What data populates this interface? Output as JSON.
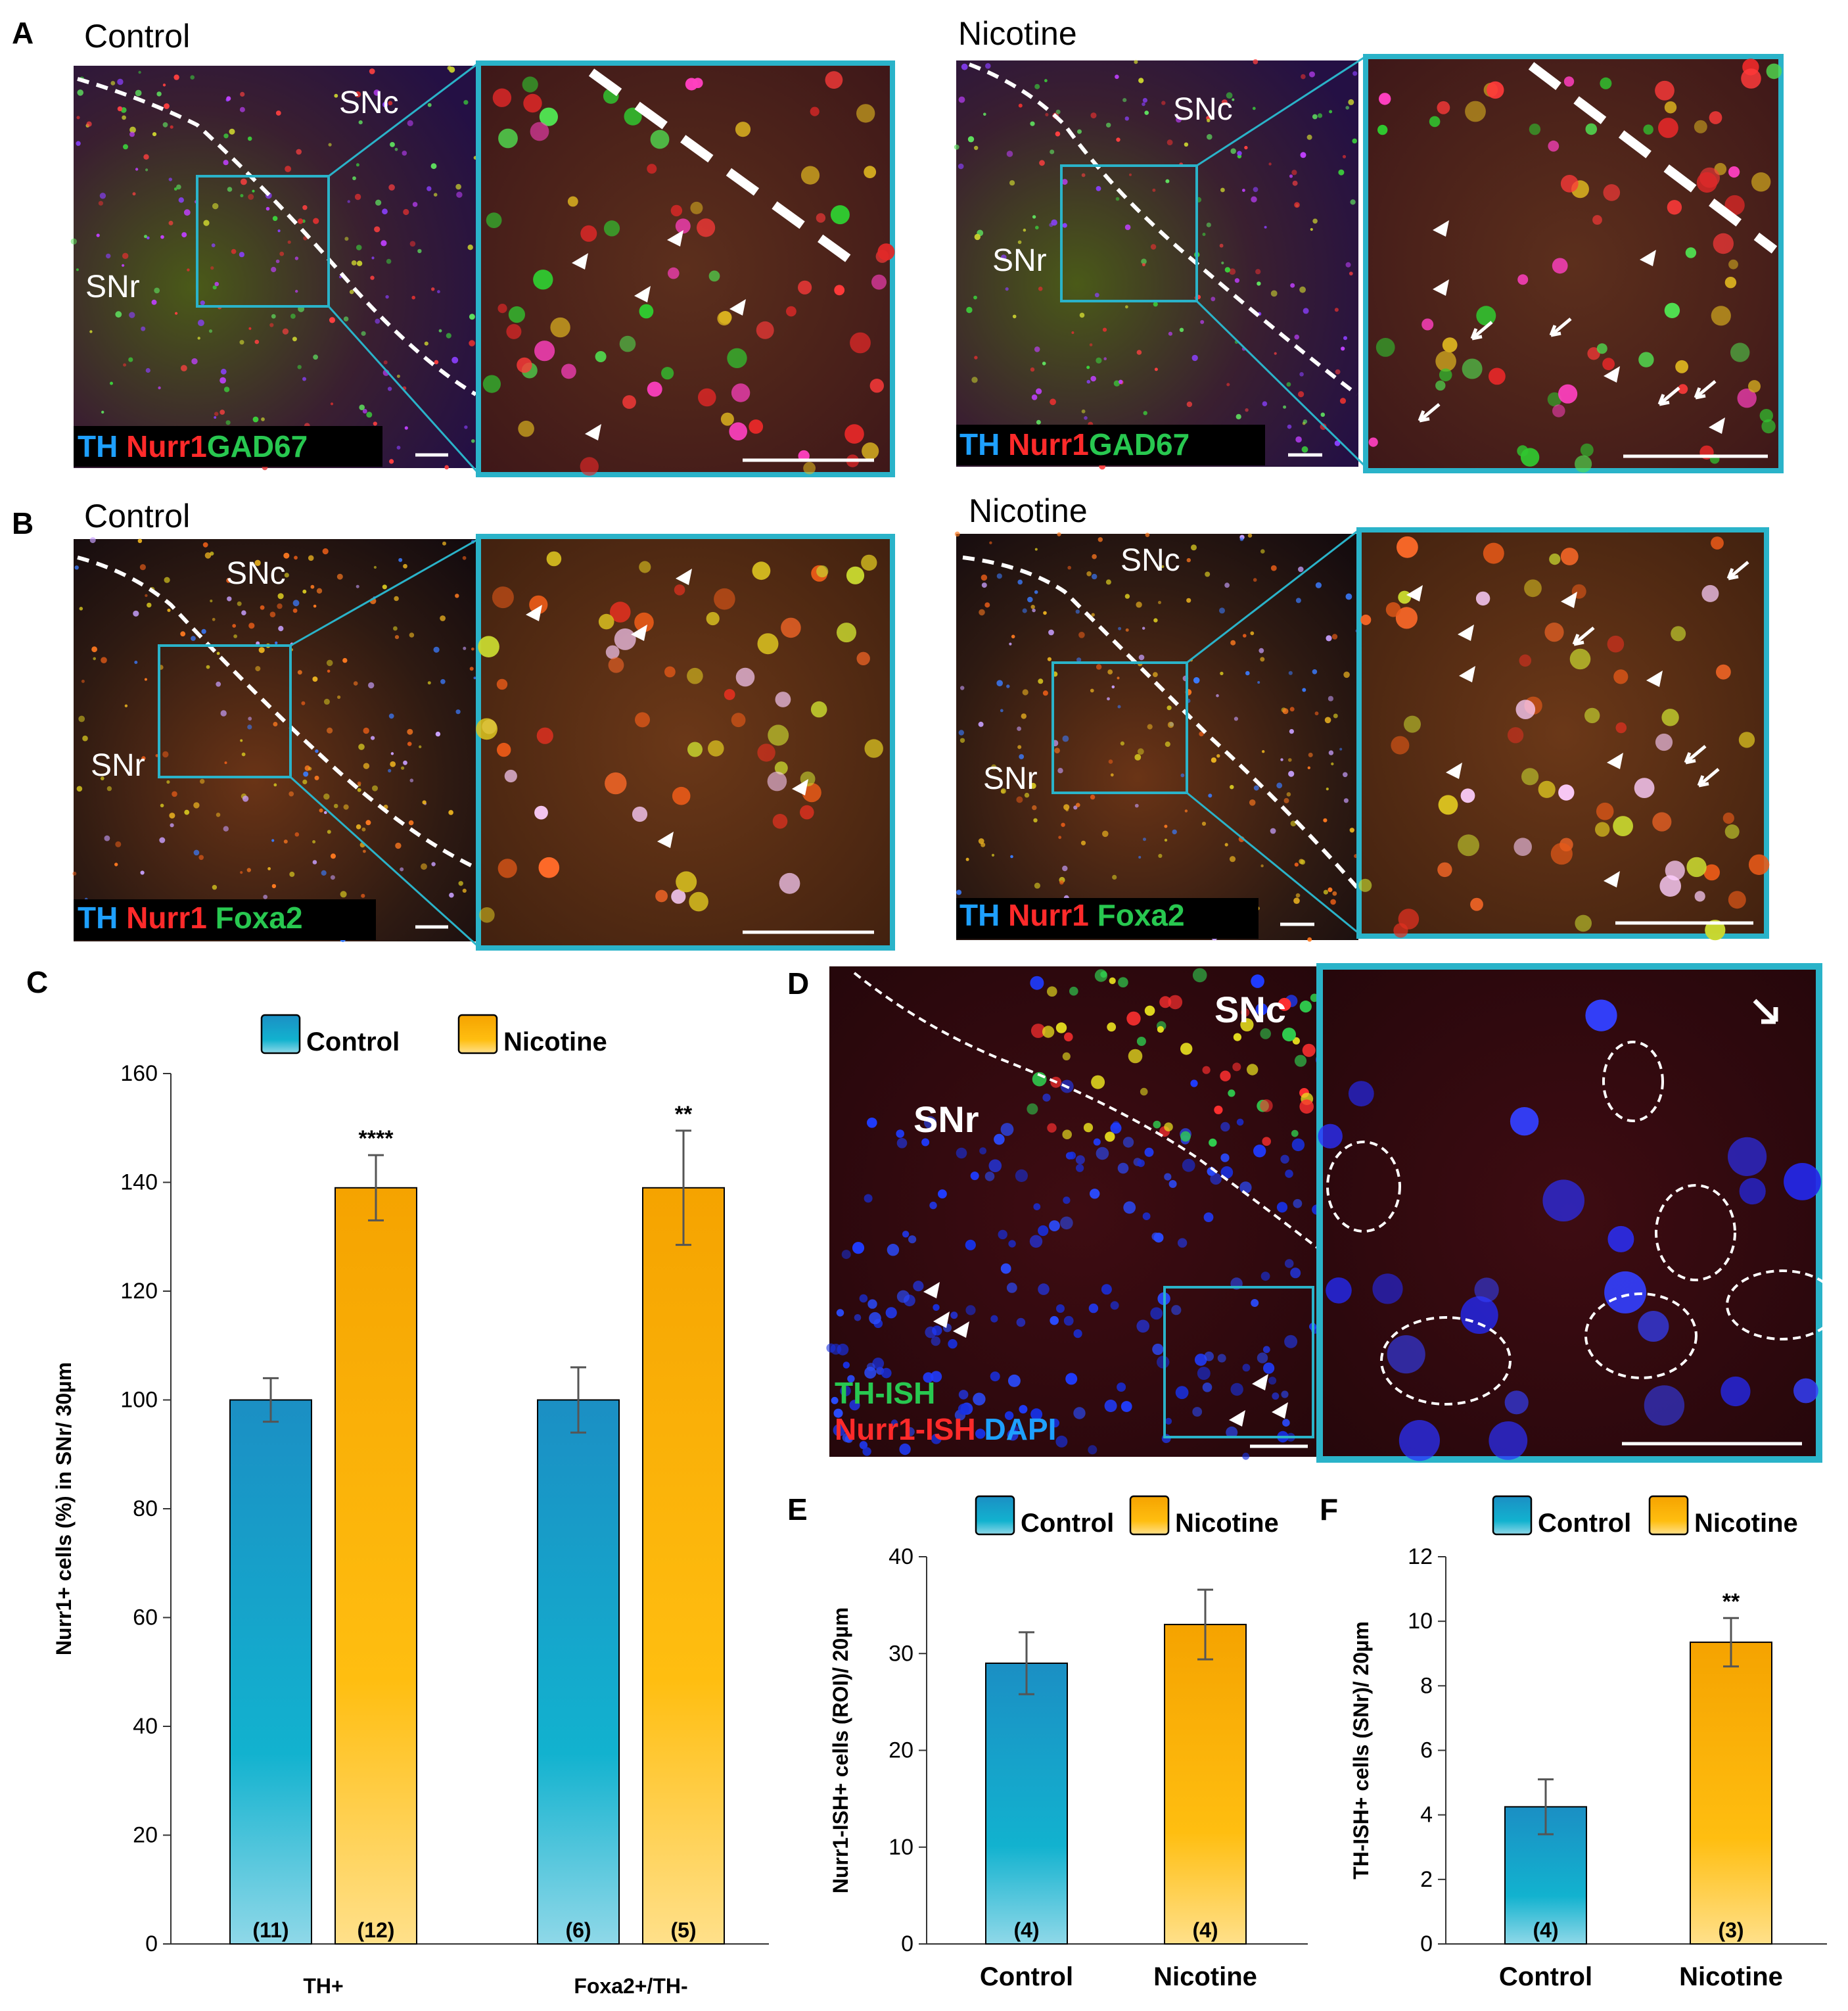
{
  "panel_labels": {
    "a": "A",
    "b": "B",
    "c": "C",
    "d": "D",
    "e": "E",
    "f": "F"
  },
  "micrographs": {
    "a_control": {
      "title": "Control",
      "region_c": "SNc",
      "region_r": "SNr",
      "stain_1": "TH",
      "stain_2": "Nurr1",
      "stain_3": "GAD67"
    },
    "a_nicotine": {
      "title": "Nicotine",
      "region_c": "SNc",
      "region_r": "SNr",
      "stain_1": "TH",
      "stain_2": "Nurr1",
      "stain_3": "GAD67"
    },
    "b_control": {
      "title": "Control",
      "region_c": "SNc",
      "region_r": "SNr",
      "stain_1": "TH",
      "stain_2": "Nurr1",
      "stain_3": "Foxa2"
    },
    "b_nicotine": {
      "title": "Nicotine",
      "region_c": "SNc",
      "region_r": "SNr",
      "stain_1": "TH",
      "stain_2": "Nurr1",
      "stain_3": "Foxa2"
    },
    "d": {
      "region_c": "SNc",
      "region_r": "SNr",
      "stain_1": "TH-ISH",
      "stain_2": "Nurr1-ISH",
      "stain_3": "DAPI"
    }
  },
  "colors": {
    "control": "#1b8fc4",
    "control_light": "#7fd3e6",
    "nicotine": "#f5a300",
    "nicotine_light": "#ffd970",
    "stain_blue": "#1ea0ff",
    "stain_red": "#ff2a2a",
    "stain_green": "#28c850",
    "frame": "#2ab3c9"
  },
  "chart_data": [
    {
      "id": "C",
      "type": "bar",
      "legend": [
        "Control",
        "Nicotine"
      ],
      "categories": [
        "TH+",
        "Foxa2+/TH-"
      ],
      "series": [
        {
          "name": "Control",
          "values": [
            100,
            100
          ],
          "errors": [
            4,
            6
          ],
          "n": [
            "(11)",
            "(6)"
          ],
          "sig": [
            "",
            ""
          ]
        },
        {
          "name": "Nicotine",
          "values": [
            139,
            139
          ],
          "errors": [
            6,
            10.5
          ],
          "n": [
            "(12)",
            "(5)"
          ],
          "sig": [
            "****",
            "**"
          ]
        }
      ],
      "ylabel": "Nurr1+ cells (%) in SNr/ 30µm",
      "ylim": [
        0,
        160
      ],
      "yticks": [
        0,
        20,
        40,
        60,
        80,
        100,
        120,
        140,
        160
      ]
    },
    {
      "id": "E",
      "type": "bar",
      "legend": [
        "Control",
        "Nicotine"
      ],
      "categories": [
        "Control",
        "Nicotine"
      ],
      "values": [
        29,
        33
      ],
      "errors": [
        3.2,
        3.6
      ],
      "n": [
        "(4)",
        "(4)"
      ],
      "sig": [
        "",
        ""
      ],
      "ylabel": "Nurr1-ISH+ cells (ROI)/ 20µm",
      "ylim": [
        0,
        40
      ],
      "yticks": [
        0,
        10,
        20,
        30,
        40
      ]
    },
    {
      "id": "F",
      "type": "bar",
      "legend": [
        "Control",
        "Nicotine"
      ],
      "categories": [
        "Control",
        "Nicotine"
      ],
      "values": [
        4.25,
        9.35
      ],
      "errors": [
        0.85,
        0.75
      ],
      "n": [
        "(4)",
        "(3)"
      ],
      "sig": [
        "",
        "**"
      ],
      "ylabel": "TH-ISH+ cells (SNr)/ 20µm",
      "ylim": [
        0,
        12
      ],
      "yticks": [
        0,
        2,
        4,
        6,
        8,
        10,
        12
      ]
    }
  ]
}
